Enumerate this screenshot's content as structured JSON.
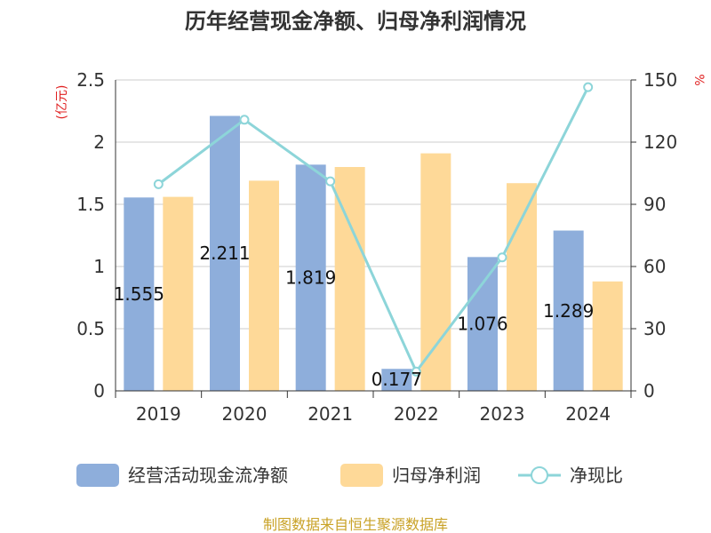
{
  "chart_data": {
    "type": "bar",
    "title": "历年经营现金净额、归母净利润情况",
    "y_left_unit": "(亿元)",
    "y_right_unit": "%",
    "categories": [
      "2019",
      "2020",
      "2021",
      "2022",
      "2023",
      "2024"
    ],
    "y_left_ticks": [
      "0",
      "0.5",
      "1",
      "1.5",
      "2",
      "2.5"
    ],
    "y_right_ticks": [
      "0",
      "30",
      "60",
      "90",
      "120",
      "150"
    ],
    "ylim_left": [
      0,
      2.5
    ],
    "ylim_right": [
      0,
      150
    ],
    "grid": true,
    "legend_position": "bottom",
    "series": [
      {
        "name": "经营活动现金流净额",
        "kind": "bar",
        "axis": "left",
        "color": "#8eaedb",
        "values": [
          1.555,
          2.211,
          1.819,
          0.177,
          1.076,
          1.289
        ],
        "data_labels": [
          "1.555",
          "2.211",
          "1.819",
          "0.177",
          "1.076",
          "1.289"
        ]
      },
      {
        "name": "归母净利润",
        "kind": "bar",
        "axis": "left",
        "color": "#fed998",
        "values": [
          1.56,
          1.69,
          1.8,
          1.91,
          1.67,
          0.88
        ]
      },
      {
        "name": "净现比",
        "kind": "line",
        "axis": "right",
        "color": "#8dd5d9",
        "values": [
          99.7,
          130.8,
          101.1,
          9.3,
          64.4,
          146.5
        ]
      }
    ],
    "source": "制图数据来自恒生聚源数据库"
  }
}
